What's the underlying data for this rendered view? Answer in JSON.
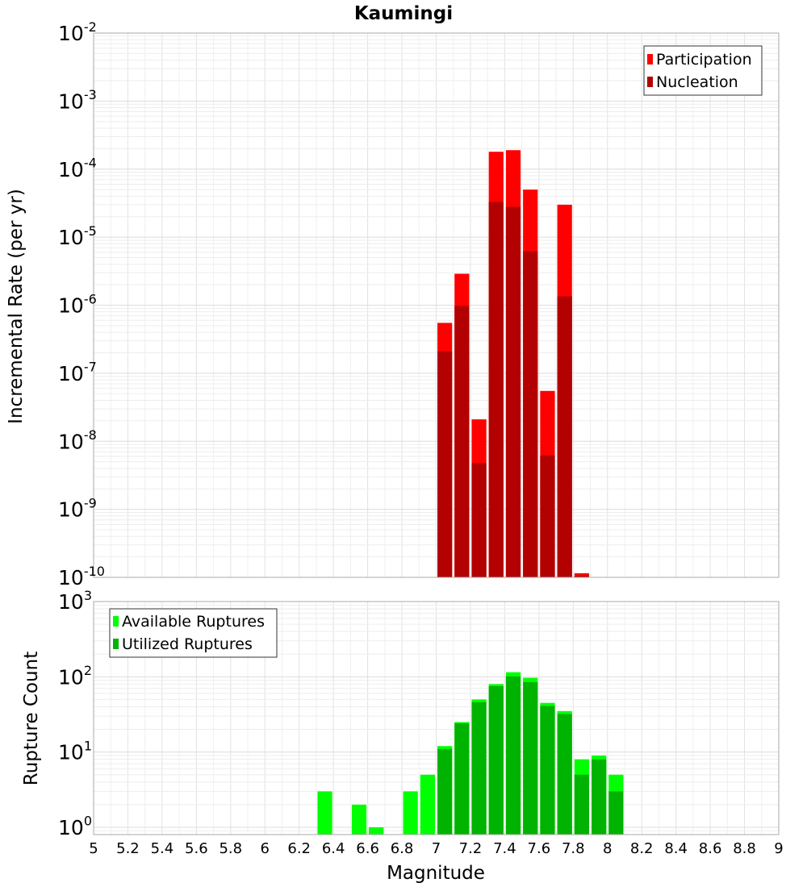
{
  "title": "Kaumingi",
  "chart_data": [
    {
      "type": "bar",
      "ylabel": "Incremental Rate (per yr)",
      "yscale": "log",
      "ylim": [
        1e-10,
        0.01
      ],
      "xlim": [
        5,
        9
      ],
      "y_tick_exponents": [
        "-2",
        "-3",
        "-4",
        "-5",
        "-6",
        "-7",
        "-8",
        "-9",
        "-10"
      ],
      "grid": true,
      "legend_position": "top-right",
      "series": [
        {
          "name": "Participation",
          "color": "#ff0000",
          "x": [
            7.05,
            7.15,
            7.25,
            7.35,
            7.45,
            7.55,
            7.65,
            7.75,
            7.85
          ],
          "values": [
            5.5e-07,
            2.9e-06,
            2.1e-08,
            0.00018,
            0.00019,
            5e-05,
            5.5e-08,
            3e-05,
            1.15e-10
          ]
        },
        {
          "name": "Nucleation",
          "color": "#b30000",
          "x": [
            7.05,
            7.15,
            7.25,
            7.35,
            7.45,
            7.55,
            7.65,
            7.75,
            7.85
          ],
          "values": [
            2.1e-07,
            9.8e-07,
            4.8e-09,
            3.3e-05,
            2.8e-05,
            6.2e-06,
            6.2e-09,
            1.35e-06,
            1.05e-10
          ]
        }
      ]
    },
    {
      "type": "bar",
      "xlabel": "Magnitude",
      "ylabel": "Rupture Count",
      "yscale": "log",
      "ylim": [
        0.8,
        1000
      ],
      "xlim": [
        5,
        9
      ],
      "y_tick_exponents": [
        "3",
        "2",
        "1",
        "0"
      ],
      "x_ticks": [
        "5",
        "5.2",
        "5.4",
        "5.6",
        "5.8",
        "6",
        "6.2",
        "6.4",
        "6.6",
        "6.8",
        "7",
        "7.2",
        "7.4",
        "7.6",
        "7.8",
        "8",
        "8.2",
        "8.4",
        "8.6",
        "8.8",
        "9"
      ],
      "grid": true,
      "legend_position": "top-left",
      "series": [
        {
          "name": "Available Ruptures",
          "color": "#00ff00",
          "x": [
            6.35,
            6.55,
            6.65,
            6.85,
            6.95,
            7.05,
            7.15,
            7.25,
            7.35,
            7.45,
            7.55,
            7.65,
            7.75,
            7.85,
            7.95,
            8.05
          ],
          "values": [
            3,
            2,
            1,
            3,
            5,
            12,
            25,
            50,
            80,
            115,
            97,
            45,
            35,
            8,
            9,
            5
          ]
        },
        {
          "name": "Utilized Ruptures",
          "color": "#00b300",
          "x": [
            7.05,
            7.15,
            7.25,
            7.35,
            7.45,
            7.55,
            7.65,
            7.75,
            7.85,
            7.95,
            8.05
          ],
          "values": [
            11,
            24,
            46,
            75,
            101,
            85,
            41,
            32,
            5,
            8,
            3
          ]
        }
      ]
    }
  ]
}
